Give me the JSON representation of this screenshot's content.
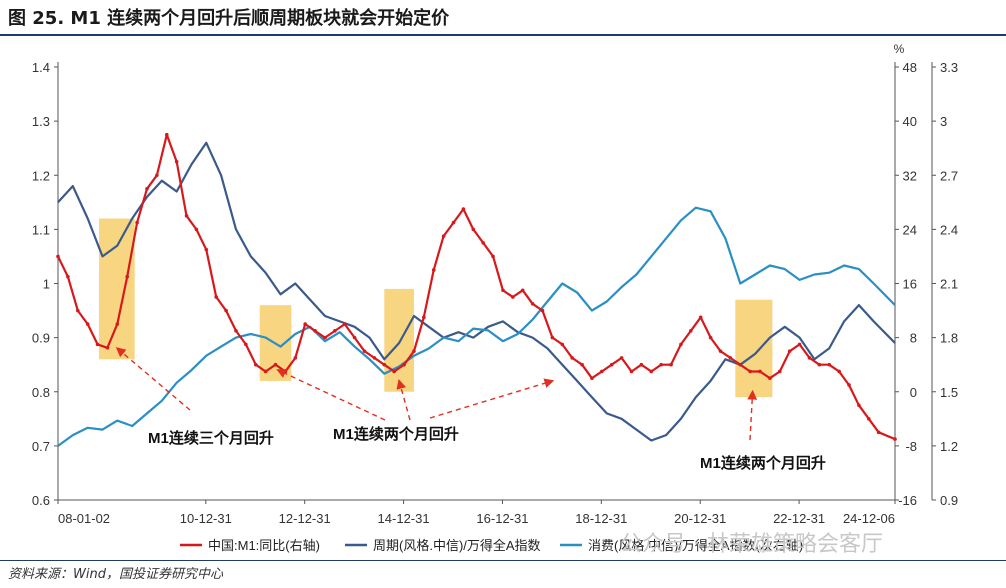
{
  "title": "图 25. M1 连续两个月回升后顺周期板块就会开始定价",
  "source": "资料来源：Wind，国投证券研究中心",
  "watermark": "公众号 · 林荣雄策略会客厅",
  "chart_data": {
    "type": "line",
    "title": "M1 连续两个月回升后顺周期板块就会开始定价",
    "left_axis": {
      "ylim": [
        0.6,
        1.4
      ],
      "ticks": [
        "0.6",
        "0.7",
        "0.8",
        "0.9",
        "1",
        "1.1",
        "1.2",
        "1.3",
        "1.4"
      ]
    },
    "right_axis": {
      "unit": "%",
      "ylim": [
        -16,
        48
      ],
      "ticks": [
        "-16",
        "-8",
        "0",
        "8",
        "16",
        "24",
        "32",
        "40",
        "48"
      ]
    },
    "right_axis2": {
      "ylim": [
        0.9,
        3.3
      ],
      "ticks": [
        "0.9",
        "1.2",
        "1.5",
        "1.8",
        "2.1",
        "2.4",
        "2.7",
        "3",
        "3.3"
      ]
    },
    "x_ticks": [
      "08-01-02",
      "10-12-31",
      "12-12-31",
      "14-12-31",
      "16-12-31",
      "18-12-31",
      "20-12-31",
      "22-12-31",
      "24-12-06"
    ],
    "x_range": [
      2008.0,
      2024.93
    ],
    "legend": [
      "中国:M1:同比(右轴)",
      "周期(风格.中信)/万得全A指数",
      "消费(风格.中信)/万得全A指数(次右轴)"
    ],
    "colors": {
      "m1": "#d7191c",
      "cyclical": "#3b5a8c",
      "consumer": "#2a8fc4",
      "highlight": "#f5c34a",
      "arrow": "#e03020"
    },
    "highlights": [
      {
        "x_start": 2008.83,
        "x_end": 2009.55,
        "left_top": 1.12,
        "left_bottom": 0.86
      },
      {
        "x_start": 2012.08,
        "x_end": 2012.72,
        "left_top": 0.96,
        "left_bottom": 0.82
      },
      {
        "x_start": 2014.6,
        "x_end": 2015.2,
        "left_top": 0.99,
        "left_bottom": 0.8
      },
      {
        "x_start": 2021.7,
        "x_end": 2022.45,
        "left_top": 0.97,
        "left_bottom": 0.79
      }
    ],
    "annotations": [
      {
        "text": "M1连续三个月回升"
      },
      {
        "text": "M1连续两个月回升"
      },
      {
        "text": "M1连续两个月回升"
      }
    ],
    "series": [
      {
        "name": "中国:M1:同比(右轴)",
        "axis": "right",
        "x": [
          2008.0,
          2008.2,
          2008.4,
          2008.6,
          2008.8,
          2009.0,
          2009.2,
          2009.4,
          2009.6,
          2009.8,
          2010.0,
          2010.2,
          2010.4,
          2010.6,
          2010.8,
          2011.0,
          2011.2,
          2011.4,
          2011.6,
          2011.8,
          2012.0,
          2012.2,
          2012.4,
          2012.6,
          2012.8,
          2013.0,
          2013.2,
          2013.4,
          2013.6,
          2013.8,
          2014.0,
          2014.2,
          2014.4,
          2014.6,
          2014.8,
          2015.0,
          2015.2,
          2015.4,
          2015.6,
          2015.8,
          2016.0,
          2016.2,
          2016.4,
          2016.6,
          2016.8,
          2017.0,
          2017.2,
          2017.4,
          2017.6,
          2017.8,
          2018.0,
          2018.2,
          2018.4,
          2018.6,
          2018.8,
          2019.0,
          2019.2,
          2019.4,
          2019.6,
          2019.8,
          2020.0,
          2020.2,
          2020.4,
          2020.6,
          2020.8,
          2021.0,
          2021.2,
          2021.4,
          2021.6,
          2021.8,
          2022.0,
          2022.2,
          2022.4,
          2022.6,
          2022.8,
          2023.0,
          2023.2,
          2023.4,
          2023.6,
          2023.8,
          2024.0,
          2024.2,
          2024.4,
          2024.6,
          2024.93
        ],
        "values": [
          20,
          17,
          12,
          10,
          7,
          6.5,
          10,
          17,
          25,
          30,
          32,
          38,
          34,
          26,
          24,
          21,
          14,
          12,
          9,
          7,
          4,
          3,
          4,
          3,
          5,
          10,
          9,
          8,
          9,
          10,
          8,
          6,
          5,
          4,
          3,
          4,
          6,
          11,
          18,
          23,
          25,
          27,
          24,
          22,
          20,
          15,
          14,
          15,
          13,
          12,
          8,
          7,
          5,
          4,
          2,
          3,
          4,
          5,
          3,
          4,
          3,
          4,
          4,
          7,
          9,
          11,
          8,
          6,
          5,
          4,
          3,
          3,
          2,
          3,
          6,
          7,
          5,
          4,
          4,
          3,
          1,
          -2,
          -4,
          -6,
          -7
        ]
      },
      {
        "name": "周期(风格.中信)/万得全A指数",
        "axis": "left",
        "x": [
          2008.0,
          2008.3,
          2008.6,
          2008.9,
          2009.2,
          2009.5,
          2009.8,
          2010.1,
          2010.4,
          2010.7,
          2011.0,
          2011.3,
          2011.6,
          2011.9,
          2012.2,
          2012.5,
          2012.8,
          2013.1,
          2013.4,
          2013.7,
          2014.0,
          2014.3,
          2014.6,
          2014.9,
          2015.2,
          2015.5,
          2015.8,
          2016.1,
          2016.4,
          2016.7,
          2017.0,
          2017.3,
          2017.6,
          2017.9,
          2018.2,
          2018.5,
          2018.8,
          2019.1,
          2019.4,
          2019.7,
          2020.0,
          2020.3,
          2020.6,
          2020.9,
          2021.2,
          2021.5,
          2021.8,
          2022.1,
          2022.4,
          2022.7,
          2023.0,
          2023.3,
          2023.6,
          2023.9,
          2024.2,
          2024.5,
          2024.93
        ],
        "values": [
          1.15,
          1.18,
          1.12,
          1.05,
          1.07,
          1.12,
          1.16,
          1.19,
          1.17,
          1.22,
          1.26,
          1.2,
          1.1,
          1.05,
          1.02,
          0.98,
          1.0,
          0.97,
          0.94,
          0.93,
          0.92,
          0.9,
          0.86,
          0.89,
          0.94,
          0.92,
          0.9,
          0.91,
          0.9,
          0.92,
          0.93,
          0.91,
          0.9,
          0.88,
          0.85,
          0.82,
          0.79,
          0.76,
          0.75,
          0.73,
          0.71,
          0.72,
          0.75,
          0.79,
          0.82,
          0.86,
          0.85,
          0.87,
          0.9,
          0.92,
          0.9,
          0.86,
          0.88,
          0.93,
          0.96,
          0.93,
          0.89
        ]
      },
      {
        "name": "消费(风格.中信)/万得全A指数(次右轴)",
        "axis": "right2",
        "x": [
          2008.0,
          2008.3,
          2008.6,
          2008.9,
          2009.2,
          2009.5,
          2009.8,
          2010.1,
          2010.4,
          2010.7,
          2011.0,
          2011.3,
          2011.6,
          2011.9,
          2012.2,
          2012.5,
          2012.8,
          2013.1,
          2013.4,
          2013.7,
          2014.0,
          2014.3,
          2014.6,
          2014.9,
          2015.2,
          2015.5,
          2015.8,
          2016.1,
          2016.4,
          2016.7,
          2017.0,
          2017.3,
          2017.6,
          2017.9,
          2018.2,
          2018.5,
          2018.8,
          2019.1,
          2019.4,
          2019.7,
          2020.0,
          2020.3,
          2020.6,
          2020.9,
          2021.2,
          2021.5,
          2021.8,
          2022.1,
          2022.4,
          2022.7,
          2023.0,
          2023.3,
          2023.6,
          2023.9,
          2024.2,
          2024.5,
          2024.93
        ],
        "values": [
          1.2,
          1.26,
          1.3,
          1.29,
          1.34,
          1.31,
          1.38,
          1.45,
          1.55,
          1.62,
          1.7,
          1.75,
          1.8,
          1.82,
          1.8,
          1.75,
          1.82,
          1.86,
          1.78,
          1.83,
          1.75,
          1.68,
          1.6,
          1.64,
          1.7,
          1.74,
          1.8,
          1.78,
          1.85,
          1.84,
          1.78,
          1.82,
          1.9,
          2.0,
          2.1,
          2.05,
          1.95,
          2.0,
          2.08,
          2.15,
          2.25,
          2.35,
          2.45,
          2.52,
          2.5,
          2.35,
          2.1,
          2.15,
          2.2,
          2.18,
          2.12,
          2.15,
          2.16,
          2.2,
          2.18,
          2.1,
          1.98
        ]
      }
    ]
  }
}
